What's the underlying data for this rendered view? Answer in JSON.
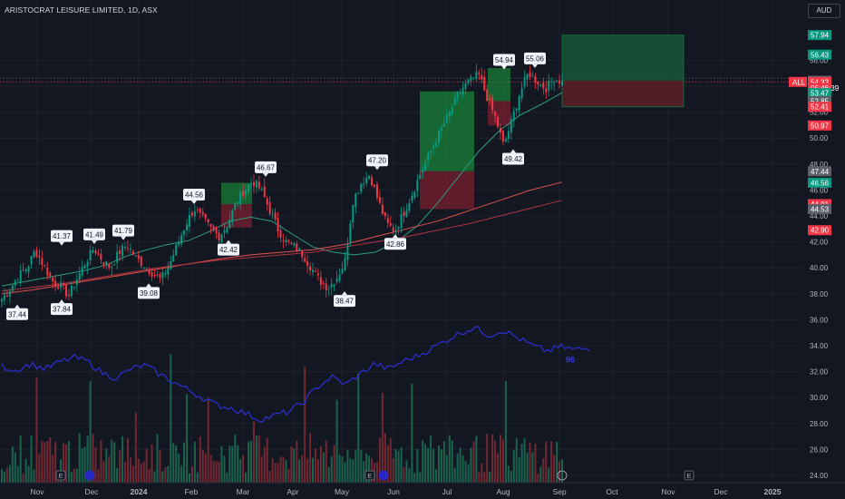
{
  "header": {
    "title": "ARISTOCRAT LEISURE LIMITED, 1D, ASX",
    "currency": "AUD"
  },
  "chart_data": {
    "type": "candlestick",
    "symbol_tag": "ALL",
    "y_axis": {
      "ticks": [
        "24.00",
        "26.00",
        "28.00",
        "30.00",
        "32.00",
        "34.00",
        "36.00",
        "38.00",
        "40.00",
        "42.00",
        "44.00",
        "46.00",
        "48.00",
        "50.00",
        "52.00",
        "54.00",
        "56.00"
      ],
      "range": [
        23.4,
        58.2
      ]
    },
    "x_axis": {
      "ticks": [
        "Nov",
        "Dec",
        "2024",
        "Feb",
        "Mar",
        "Apr",
        "May",
        "Jun",
        "Jul",
        "Aug",
        "Sep",
        "Oct",
        "Nov",
        "Dec",
        "2025"
      ]
    },
    "price_labels": [
      {
        "text": "57.94",
        "value": 57.94,
        "color": "#089981"
      },
      {
        "text": "56.43",
        "value": 56.43,
        "color": "#089981"
      },
      {
        "text": "54.42",
        "value": 54.42,
        "color": "#5d606b"
      },
      {
        "text": "54.33",
        "value": 54.33,
        "color": "#f23645"
      },
      {
        "text": "05:46:39",
        "value": 53.85,
        "color": "#f23645"
      },
      {
        "text": "53.47",
        "value": 53.47,
        "color": "#089981"
      },
      {
        "text": "52.85",
        "value": 52.85,
        "color": "#5d606b"
      },
      {
        "text": "52.41",
        "value": 52.41,
        "color": "#f23645"
      },
      {
        "text": "50.97",
        "value": 50.97,
        "color": "#f23645"
      },
      {
        "text": "47.44",
        "value": 47.44,
        "color": "#5d606b"
      },
      {
        "text": "46.56",
        "value": 46.56,
        "color": "#089981"
      },
      {
        "text": "44.91",
        "value": 44.91,
        "color": "#f23645"
      },
      {
        "text": "44.53",
        "value": 44.53,
        "color": "#5d606b"
      },
      {
        "text": "42.90",
        "value": 42.9,
        "color": "#f23645"
      }
    ],
    "pivot_labels": [
      {
        "text": "37.44",
        "value": 37.44,
        "type": "low"
      },
      {
        "text": "41.37",
        "value": 41.37,
        "type": "high"
      },
      {
        "text": "37.84",
        "value": 37.84,
        "type": "low"
      },
      {
        "text": "41.49",
        "value": 41.49,
        "type": "high"
      },
      {
        "text": "41.79",
        "value": 41.79,
        "type": "high"
      },
      {
        "text": "39.08",
        "value": 39.08,
        "type": "low"
      },
      {
        "text": "44.56",
        "value": 44.56,
        "type": "high"
      },
      {
        "text": "42.42",
        "value": 42.42,
        "type": "low"
      },
      {
        "text": "46.67",
        "value": 46.67,
        "type": "high"
      },
      {
        "text": "38.47",
        "value": 38.47,
        "type": "low"
      },
      {
        "text": "47.20",
        "value": 47.2,
        "type": "high"
      },
      {
        "text": "42.86",
        "value": 42.86,
        "type": "low"
      },
      {
        "text": "54.94",
        "value": 54.94,
        "type": "high"
      },
      {
        "text": "49.42",
        "value": 49.42,
        "type": "low"
      },
      {
        "text": "55.06",
        "value": 55.06,
        "type": "high"
      }
    ],
    "price_path": [
      37.6,
      38.4,
      39.4,
      40.0,
      41.37,
      40.2,
      39.0,
      38.6,
      37.84,
      39.2,
      40.4,
      41.49,
      40.6,
      40.0,
      41.2,
      41.79,
      40.8,
      40.2,
      39.6,
      39.08,
      40.2,
      41.8,
      43.4,
      44.56,
      43.8,
      43.0,
      42.42,
      43.4,
      45.0,
      46.0,
      46.67,
      46.0,
      44.5,
      43.0,
      42.0,
      41.6,
      41.0,
      40.0,
      39.0,
      38.47,
      39.2,
      40.4,
      45.2,
      46.6,
      47.2,
      45.2,
      43.4,
      42.86,
      44.2,
      45.6,
      47.2,
      48.6,
      50.0,
      51.2,
      52.6,
      53.8,
      54.4,
      54.94,
      53.2,
      51.6,
      49.42,
      51.4,
      53.6,
      55.06,
      54.4,
      53.8,
      54.6,
      54.33
    ],
    "ema_short": [
      38.6,
      38.9,
      39.2,
      39.5,
      39.8,
      40.2,
      40.9,
      41.4,
      41.8,
      42.1,
      42.8,
      43.6,
      43.9,
      43.6,
      42.6,
      41.6,
      41.2,
      41.0,
      41.2,
      42.0,
      43.2,
      45.0,
      47.0,
      49.0,
      50.6,
      51.8,
      52.6,
      53.5
    ],
    "ma_red": [
      38.0,
      38.3,
      38.7,
      39.1,
      39.5,
      39.9,
      40.3,
      40.7,
      41.0,
      41.2,
      41.4,
      41.8,
      42.4,
      43.0,
      43.6,
      44.4,
      45.2,
      46.0,
      46.6
    ],
    "ma_darkred": [
      38.2,
      38.5,
      38.8,
      39.2,
      39.6,
      40.0,
      40.3,
      40.6,
      40.8,
      41.0,
      41.2,
      41.6,
      42.0,
      42.4,
      42.9,
      43.4,
      44.0,
      44.6,
      45.2
    ],
    "secondary_indicator": [
      32.4,
      32.1,
      32.6,
      32.2,
      32.7,
      33.1,
      32.8,
      31.9,
      31.5,
      32.2,
      32.5,
      31.8,
      31.2,
      30.6,
      30.0,
      29.4,
      29.2,
      28.8,
      28.3,
      28.6,
      28.9,
      29.6,
      30.8,
      31.6,
      31.0,
      31.8,
      32.6,
      32.2,
      32.8,
      33.2,
      33.8,
      34.4,
      35.0,
      35.4,
      34.8,
      35.2,
      34.6,
      34.0,
      33.6,
      33.9,
      33.7,
      33.8
    ],
    "secondary_axis_tag": "96",
    "positions": [
      {
        "type": "long",
        "entry": 52.4,
        "target": 57.94,
        "stop": 52.41,
        "tp_top": 57.94,
        "tp_bottom": 54.42,
        "sl_bottom": 52.41
      },
      {
        "type": "long",
        "entry": 47.44,
        "target": 53.6,
        "stop": 44.53
      },
      {
        "type": "long",
        "entry": 43.6,
        "target": 46.56,
        "stop": 42.42
      },
      {
        "type": "long",
        "entry": 52.85,
        "target": 54.94,
        "stop": 50.97
      }
    ],
    "colors": {
      "up": "#089981",
      "down": "#f23645",
      "ema": "#2e9c7d",
      "ma_red": "#e0504a",
      "ma_darkred": "#b03440",
      "indicator": "#2b2fd6",
      "vol_up": "#1b6b52",
      "vol_down": "#7d2a33"
    },
    "grid": true
  }
}
